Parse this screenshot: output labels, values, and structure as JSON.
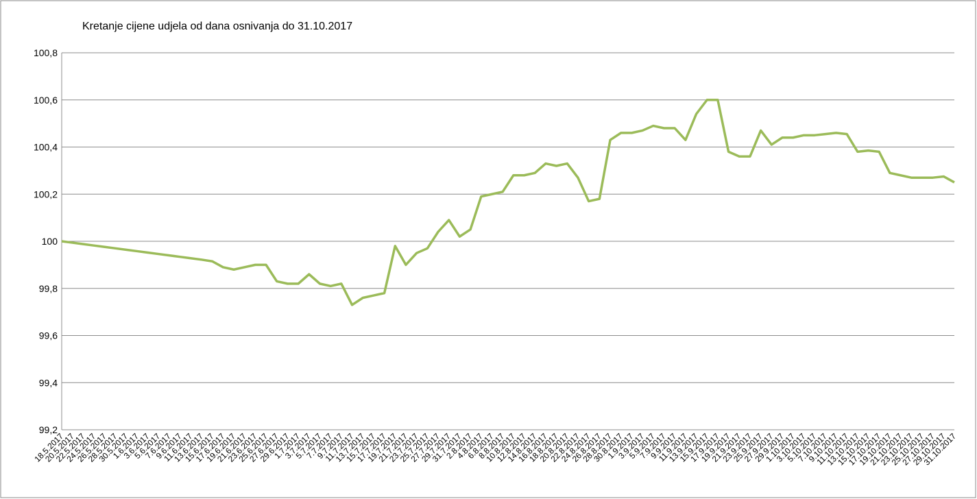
{
  "chart_data": {
    "type": "line",
    "title": "Kretanje cijene udjela od dana osnivanja do 31.10.2017",
    "categories": [
      "18.5.2017",
      "20.5.2017",
      "22.5.2017",
      "24.5.2017",
      "26.5.2017",
      "28.5.2017",
      "30.5.2017",
      "1.6.2017",
      "3.6.2017",
      "5.6.2017",
      "7.6.2017",
      "9.6.2017",
      "11.6.2017",
      "13.6.2017",
      "15.6.2017",
      "17.6.2017",
      "19.6.2017",
      "21.6.2017",
      "23.6.2017",
      "25.6.2017",
      "27.6.2017",
      "29.6.2017",
      "1.7.2017",
      "3.7.2017",
      "5.7.2017",
      "7.7.2017",
      "9.7.2017",
      "11.7.2017",
      "13.7.2017",
      "15.7.2017",
      "17.7.2017",
      "19.7.2017",
      "21.7.2017",
      "23.7.2017",
      "25.7.2017",
      "27.7.2017",
      "29.7.2017",
      "31.7.2017",
      "2.8.2017",
      "4.8.2017",
      "6.8.2017",
      "8.8.2017",
      "10.8.2017",
      "12.8.2017",
      "14.8.2017",
      "16.8.2017",
      "18.8.2017",
      "20.8.2017",
      "22.8.2017",
      "24.8.2017",
      "26.8.2017",
      "28.8.2017",
      "30.8.2017",
      "1.9.2017",
      "3.9.2017",
      "5.9.2017",
      "7.9.2017",
      "9.9.2017",
      "11.9.2017",
      "13.9.2017",
      "15.9.2017",
      "17.9.2017",
      "19.9.2017",
      "21.9.2017",
      "23.9.2017",
      "25.9.2017",
      "27.9.2017",
      "29.9.2017",
      "1.10.2017",
      "3.10.2017",
      "5.10.2017",
      "7.10.2017",
      "9.10.2017",
      "11.10.2017",
      "13.10.2017",
      "15.10.2017",
      "17.10.2017",
      "19.10.2017",
      "21.10.2017",
      "23.10.2017",
      "25.10.2017",
      "27.10.2017",
      "29.10.2017",
      "31.10.2017"
    ],
    "series": [
      {
        "color": "#9bbb59",
        "values": [
          100,
          99.994,
          99.988,
          99.982,
          99.976,
          99.97,
          99.964,
          99.958,
          99.952,
          99.946,
          99.94,
          99.934,
          99.928,
          99.922,
          99.915,
          99.89,
          99.88,
          99.89,
          99.9,
          99.9,
          99.83,
          99.82,
          99.82,
          99.86,
          99.82,
          99.81,
          99.82,
          99.73,
          99.76,
          99.77,
          99.78,
          99.98,
          99.9,
          99.95,
          99.97,
          100.04,
          100.09,
          100.02,
          100.05,
          100.19,
          100.2,
          100.21,
          100.28,
          100.28,
          100.29,
          100.33,
          100.32,
          100.33,
          100.27,
          100.17,
          100.18,
          100.43,
          100.46,
          100.46,
          100.47,
          100.49,
          100.48,
          100.48,
          100.43,
          100.54,
          100.6,
          100.6,
          100.38,
          100.36,
          100.36,
          100.47,
          100.41,
          100.44,
          100.44,
          100.45,
          100.45,
          100.455,
          100.46,
          100.455,
          100.38,
          100.385,
          100.38,
          100.29,
          100.28,
          100.27,
          100.27,
          100.27,
          100.275,
          100.25
        ]
      }
    ],
    "ylim": [
      99.2,
      100.8
    ],
    "yticks": [
      {
        "value": 99.2,
        "label": "99,2"
      },
      {
        "value": 99.4,
        "label": "99,4"
      },
      {
        "value": 99.6,
        "label": "99,6"
      },
      {
        "value": 99.8,
        "label": "99,8"
      },
      100,
      {
        "value": 100.2,
        "label": "100,2"
      },
      {
        "value": 100.4,
        "label": "100,4"
      },
      {
        "value": 100.6,
        "label": "100,6"
      },
      {
        "value": 100.8,
        "label": "100,8"
      }
    ],
    "grid": true
  }
}
